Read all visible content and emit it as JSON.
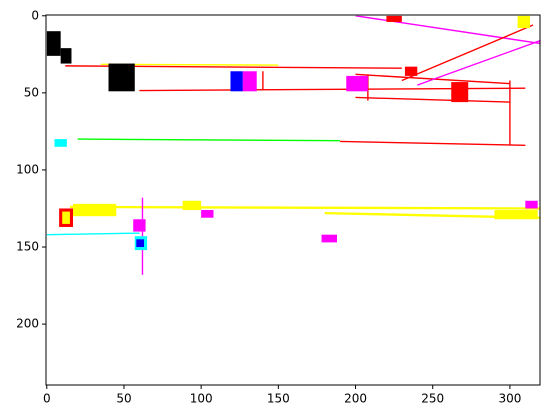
{
  "chart_data": {
    "type": "image",
    "xlim": [
      -0.5,
      319.5
    ],
    "ylim": [
      239.5,
      -0.5
    ],
    "xticks": [
      0,
      50,
      100,
      150,
      200,
      250,
      300
    ],
    "yticks": [
      0,
      50,
      100,
      150,
      200
    ]
  }
}
